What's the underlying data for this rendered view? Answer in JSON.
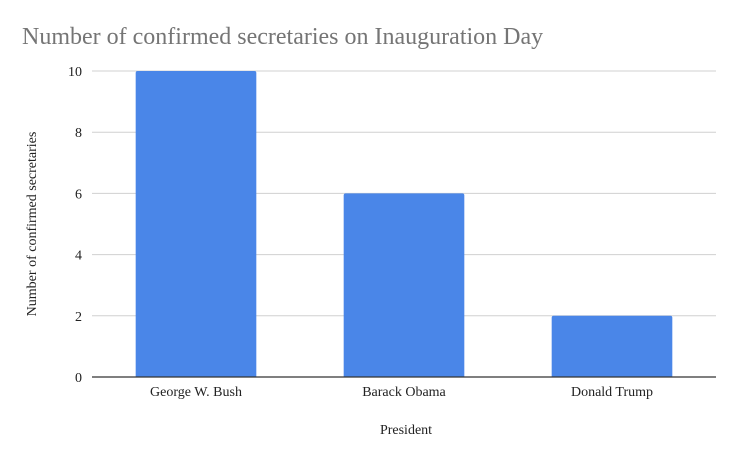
{
  "chart_data": {
    "type": "bar",
    "title": "Number of confirmed secretaries on Inauguration Day",
    "xlabel": "President",
    "ylabel": "Number of confirmed secretaries",
    "categories": [
      "George W. Bush",
      "Barack Obama",
      "Donald Trump"
    ],
    "values": [
      10,
      6,
      2
    ],
    "ylim": [
      0,
      10
    ],
    "yticks": [
      0,
      2,
      4,
      6,
      8,
      10
    ],
    "grid": true,
    "legend": "none",
    "bar_color": "#4a86e8"
  }
}
